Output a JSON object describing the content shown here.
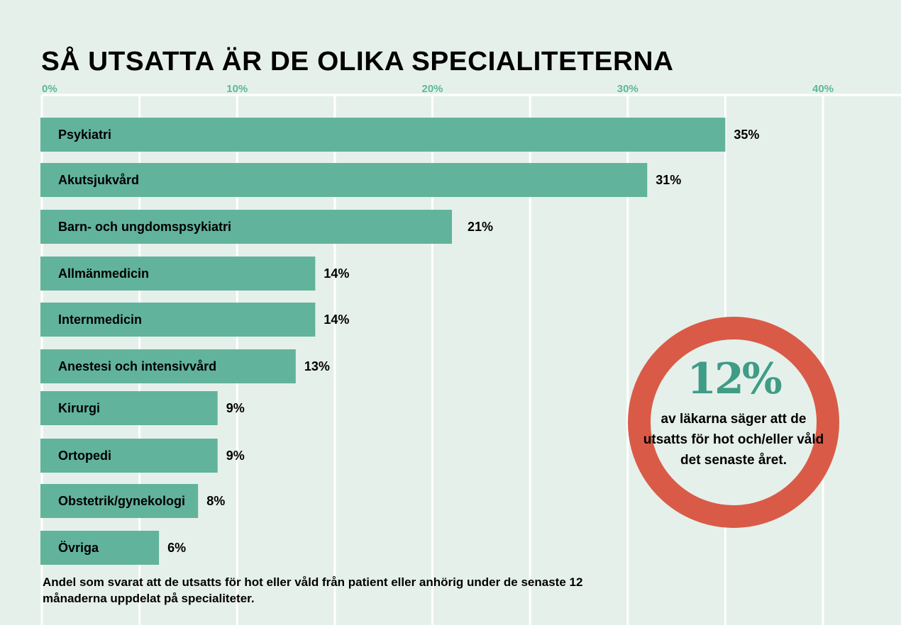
{
  "title": "SÅ UTSATTA ÄR DE OLIKA SPECIALITETERNA",
  "note": "Andel som svarat att de utsatts för hot eller våld från patient eller anhörig under de senaste 12 månaderna uppdelat på specialiteter.",
  "callout": {
    "value": "12%",
    "text": "av läkarna säger att de utsatts för hot och/eller våld det senaste året.",
    "ring_color": "#d95b47",
    "value_color": "#3f9c86"
  },
  "colors": {
    "bar": "#62b39b",
    "background": "#e6f0eb",
    "grid": "#ffffff",
    "tick": "#5cb89a"
  },
  "chart_data": {
    "type": "bar",
    "orientation": "horizontal",
    "categories": [
      "Psykiatri",
      "Akutsjukvård",
      "Barn- och ungdomspsykiatri",
      "Allmänmedicin",
      "Internmedicin",
      "Anestesi och intensivvård",
      "Kirurgi",
      "Ortopedi",
      "Obstetrik/gynekologi",
      "Övriga"
    ],
    "values": [
      35,
      31,
      21,
      14,
      14,
      13,
      9,
      9,
      8,
      6
    ],
    "value_labels": [
      "35%",
      "31%",
      "21%",
      "14%",
      "14%",
      "13%",
      "9%",
      "9%",
      "8%",
      "6%"
    ],
    "xlim": [
      0,
      40
    ],
    "x_ticks": [
      "0%",
      "10%",
      "20%",
      "30%",
      "40%"
    ],
    "x_tick_values": [
      0,
      10,
      20,
      30,
      40
    ],
    "x_axis_position": "top",
    "grid": true,
    "title": "SÅ UTSATTA ÄR DE OLIKA SPECIALITETERNA"
  }
}
